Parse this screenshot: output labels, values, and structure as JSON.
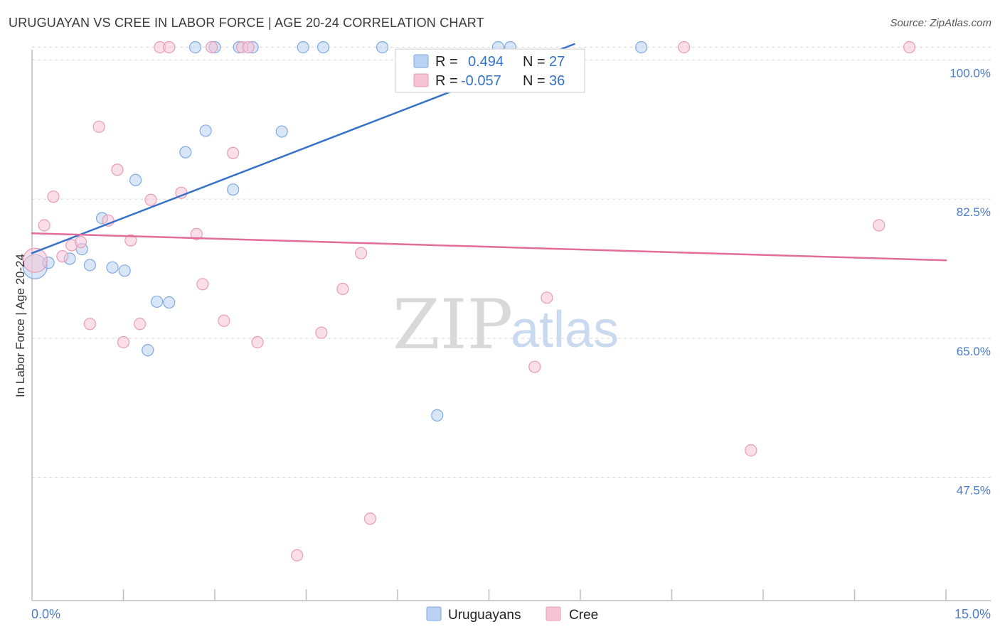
{
  "header": {
    "title": "URUGUAYAN VS CREE IN LABOR FORCE | AGE 20-24 CORRELATION CHART",
    "source": "Source: ZipAtlas.com"
  },
  "colors": {
    "blue": "#3471c9",
    "blue_fill": "#b9d1f2",
    "pink": "#e26d98",
    "pink_fill": "#f6c4d5",
    "grid": "#d8d8d8",
    "tick_text": "#4a7cc7"
  },
  "watermark": {
    "zip": "ZIP",
    "atlas": "atlas"
  },
  "legend": {
    "rows": [
      {
        "r_label": "R =",
        "r_value": "0.494",
        "n_label": "N =",
        "n_value": "27",
        "color": "blue"
      },
      {
        "r_label": "R =",
        "r_value": "-0.057",
        "n_label": "N =",
        "n_value": "36",
        "color": "pink"
      }
    ]
  },
  "bottom_legend": [
    {
      "label": "Uruguayans",
      "color": "blue"
    },
    {
      "label": "Cree",
      "color": "pink"
    }
  ],
  "chart_data": {
    "type": "scatter",
    "title": "URUGUAYAN VS CREE IN LABOR FORCE | AGE 20-24 CORRELATION CHART",
    "xlabel": "",
    "ylabel": "In Labor Force | Age 20-24",
    "xlim": [
      0.0,
      15.0
    ],
    "ylim": [
      32.0,
      102.0
    ],
    "x_tick_labels": [
      "0.0%",
      "15.0%"
    ],
    "y_ticks": [
      47.5,
      65.0,
      82.5,
      100.0
    ],
    "y_tick_labels": [
      "47.5%",
      "65.0%",
      "82.5%",
      "100.0%"
    ],
    "series": [
      {
        "name": "Uruguayans",
        "color": "blue",
        "r": 0.494,
        "n": 27,
        "trend": {
          "x": [
            0.0,
            8.9
          ],
          "y": [
            75.7,
            102.0
          ]
        },
        "points": [
          {
            "x": 0.05,
            "y": 74.0,
            "big": true
          },
          {
            "x": 0.27,
            "y": 74.5
          },
          {
            "x": 0.62,
            "y": 75.0
          },
          {
            "x": 0.82,
            "y": 76.2
          },
          {
            "x": 0.95,
            "y": 74.2
          },
          {
            "x": 1.15,
            "y": 80.1
          },
          {
            "x": 1.32,
            "y": 73.9
          },
          {
            "x": 1.52,
            "y": 73.5
          },
          {
            "x": 1.7,
            "y": 84.9
          },
          {
            "x": 1.9,
            "y": 63.5
          },
          {
            "x": 2.05,
            "y": 69.6
          },
          {
            "x": 2.25,
            "y": 69.5
          },
          {
            "x": 2.52,
            "y": 88.4
          },
          {
            "x": 2.68,
            "y": 101.6
          },
          {
            "x": 2.85,
            "y": 91.1
          },
          {
            "x": 3.0,
            "y": 101.6
          },
          {
            "x": 3.3,
            "y": 83.7
          },
          {
            "x": 3.4,
            "y": 101.6
          },
          {
            "x": 3.62,
            "y": 101.6
          },
          {
            "x": 4.1,
            "y": 91.0
          },
          {
            "x": 4.45,
            "y": 101.6
          },
          {
            "x": 4.78,
            "y": 101.6
          },
          {
            "x": 5.75,
            "y": 101.6
          },
          {
            "x": 6.65,
            "y": 55.3
          },
          {
            "x": 7.65,
            "y": 101.6
          },
          {
            "x": 7.85,
            "y": 101.6
          },
          {
            "x": 10.0,
            "y": 101.6
          }
        ]
      },
      {
        "name": "Cree",
        "color": "pink",
        "r": -0.057,
        "n": 36,
        "trend": {
          "x": [
            0.0,
            15.0
          ],
          "y": [
            78.2,
            74.8
          ]
        },
        "points": [
          {
            "x": 0.05,
            "y": 74.8,
            "big": true
          },
          {
            "x": 0.2,
            "y": 79.2
          },
          {
            "x": 0.35,
            "y": 82.8
          },
          {
            "x": 0.5,
            "y": 75.3
          },
          {
            "x": 0.65,
            "y": 76.7
          },
          {
            "x": 0.8,
            "y": 77.1
          },
          {
            "x": 0.95,
            "y": 66.8
          },
          {
            "x": 1.1,
            "y": 91.6
          },
          {
            "x": 1.25,
            "y": 79.8
          },
          {
            "x": 1.4,
            "y": 86.2
          },
          {
            "x": 1.5,
            "y": 64.5
          },
          {
            "x": 1.62,
            "y": 77.3
          },
          {
            "x": 1.77,
            "y": 66.8
          },
          {
            "x": 1.95,
            "y": 82.4
          },
          {
            "x": 2.1,
            "y": 101.6
          },
          {
            "x": 2.25,
            "y": 101.6
          },
          {
            "x": 2.45,
            "y": 83.3
          },
          {
            "x": 2.7,
            "y": 78.1
          },
          {
            "x": 2.8,
            "y": 71.8
          },
          {
            "x": 2.95,
            "y": 101.6
          },
          {
            "x": 3.15,
            "y": 67.2
          },
          {
            "x": 3.3,
            "y": 88.3
          },
          {
            "x": 3.45,
            "y": 101.6
          },
          {
            "x": 3.55,
            "y": 101.6
          },
          {
            "x": 3.7,
            "y": 64.5
          },
          {
            "x": 4.35,
            "y": 37.7
          },
          {
            "x": 4.75,
            "y": 65.7
          },
          {
            "x": 5.1,
            "y": 71.2
          },
          {
            "x": 5.4,
            "y": 75.7
          },
          {
            "x": 5.55,
            "y": 42.3
          },
          {
            "x": 8.25,
            "y": 61.4
          },
          {
            "x": 8.45,
            "y": 70.1
          },
          {
            "x": 10.7,
            "y": 101.6
          },
          {
            "x": 11.8,
            "y": 50.9
          },
          {
            "x": 13.9,
            "y": 79.2
          },
          {
            "x": 14.4,
            "y": 101.6
          }
        ]
      }
    ]
  }
}
